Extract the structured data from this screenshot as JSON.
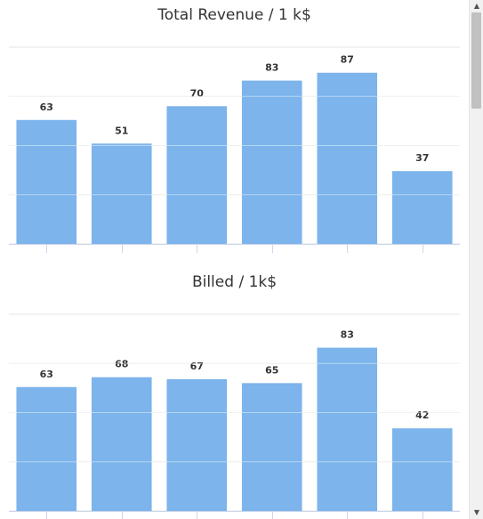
{
  "chart_data": [
    {
      "type": "bar",
      "title": "Total Revenue / 1 k$",
      "categories": [
        "",
        "",
        "",
        "",
        "",
        ""
      ],
      "values": [
        63,
        51,
        70,
        83,
        87,
        37
      ],
      "ylim": [
        0,
        100
      ],
      "grid": true,
      "bar_color": "#7cb4eb"
    },
    {
      "type": "bar",
      "title": "Billed / 1k$",
      "categories": [
        "",
        "",
        "",
        "",
        "",
        ""
      ],
      "values": [
        63,
        68,
        67,
        65,
        83,
        42
      ],
      "ylim": [
        0,
        100
      ],
      "grid": true,
      "bar_color": "#7cb4eb"
    }
  ],
  "scrollbar": {
    "up_icon": "▲",
    "down_icon": "▼"
  }
}
